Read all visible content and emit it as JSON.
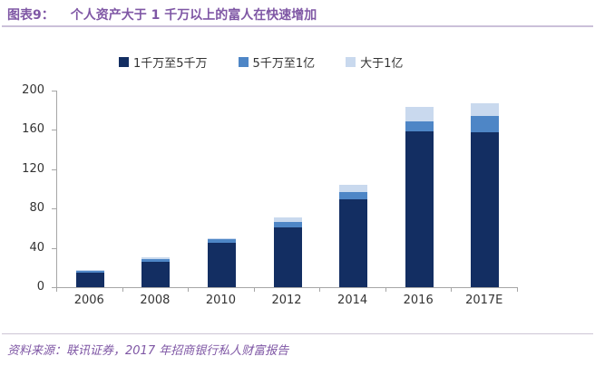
{
  "header": {
    "label": "图表9：",
    "title": "个人资产大于 1 千万以上的富人在快速增加"
  },
  "colors": {
    "title_purple": "#7F57A5",
    "series_dark": "#132E62",
    "series_medium": "#4E86C6",
    "series_light": "#C9D9EE",
    "axis_gray": "#A6A6A6"
  },
  "chart_data": {
    "type": "bar",
    "stacked": true,
    "title": "个人资产大于 1 千万以上的富人在快速增加",
    "categories": [
      "2006",
      "2008",
      "2010",
      "2012",
      "2014",
      "2016",
      "2017E"
    ],
    "series": [
      {
        "name": "1千万至5千万",
        "color": "#132E62",
        "values": [
          15,
          26,
          45,
          61,
          89,
          159,
          158
        ]
      },
      {
        "name": "5千万至1亿",
        "color": "#4E86C6",
        "values": [
          2,
          3,
          4,
          5,
          8,
          10,
          16
        ]
      },
      {
        "name": "大于1亿",
        "color": "#C9D9EE",
        "values": [
          1,
          1,
          1,
          5,
          7,
          14,
          13
        ]
      }
    ],
    "totals": [
      18,
      30,
      50,
      71,
      104,
      183,
      187
    ],
    "xlabel": "",
    "ylabel": "",
    "ylim": [
      0,
      200
    ],
    "yticks": [
      0,
      40,
      80,
      120,
      160,
      200
    ],
    "grid": false,
    "legend_position": "top"
  },
  "footer": {
    "source": "资料来源：联讯证券，2017 年招商银行私人财富报告"
  }
}
